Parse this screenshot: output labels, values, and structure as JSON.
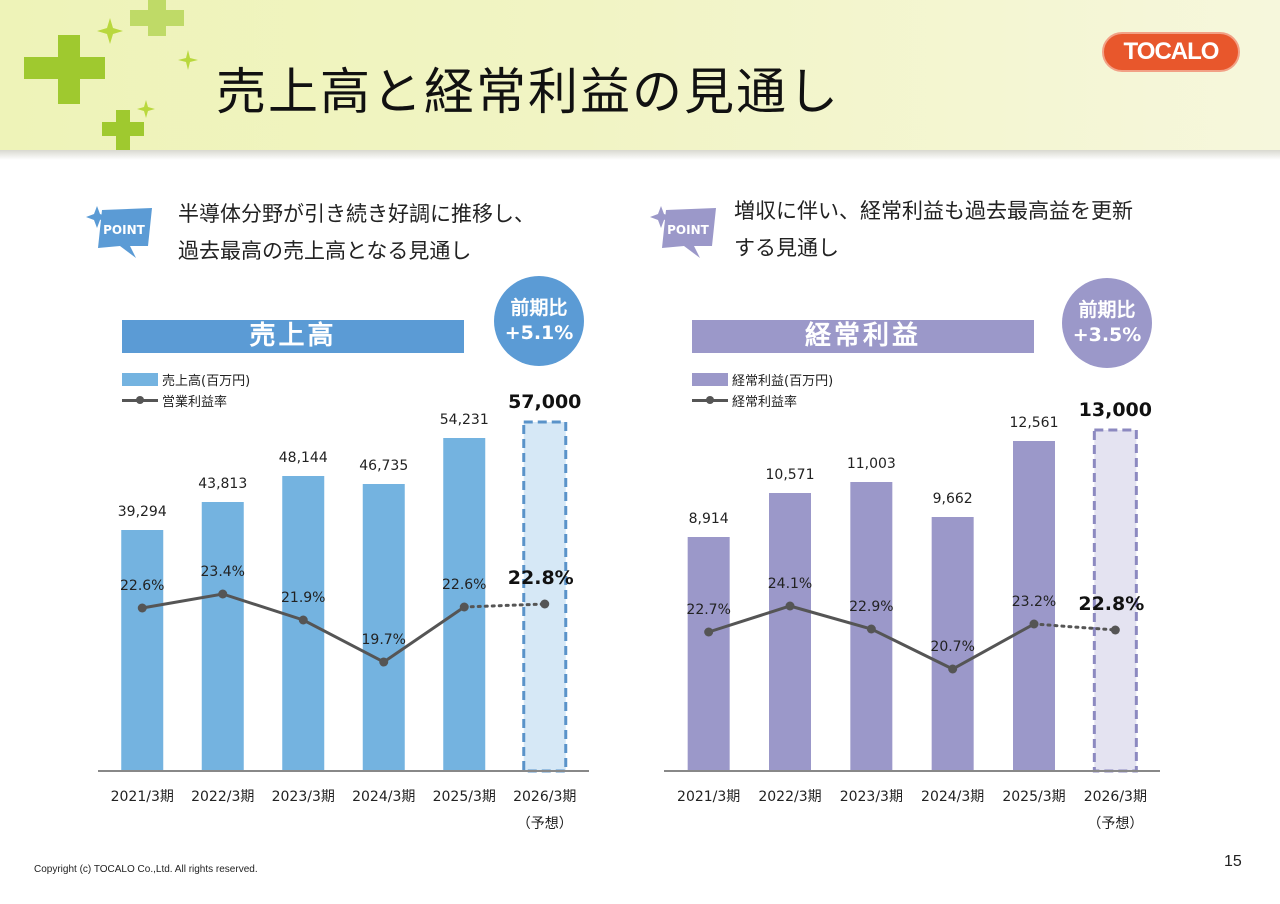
{
  "page": {
    "title": "売上高と経常利益の見通し",
    "logo_text": "TOCALO",
    "copyright": "Copyright (c) TOCALO Co.,Ltd. All rights reserved.",
    "page_number": "15"
  },
  "left_panel": {
    "point_badge": "POINT",
    "point_lines": [
      "半導体分野が引き続き好調に推移し、",
      "過去最高の売上高となる見通し"
    ],
    "chart_title": "売上高",
    "yoy_label": "前期比",
    "yoy_value": "+5.1%",
    "legend_bar": "売上高(百万円)",
    "legend_line": "営業利益率"
  },
  "right_panel": {
    "point_badge": "POINT",
    "point_lines": [
      "増収に伴い、経常利益も過去最高益を更新",
      "する見通し"
    ],
    "chart_title": "経常利益",
    "yoy_label": "前期比",
    "yoy_value": "+3.5%",
    "legend_bar": "経常利益(百万円)",
    "legend_line": "経常利益率"
  },
  "chart_data": [
    {
      "type": "bar",
      "title": "売上高",
      "categories": [
        "2021/3期",
        "2022/3期",
        "2023/3期",
        "2024/3期",
        "2025/3期",
        "2026/3期"
      ],
      "forecast_note": "（予想）",
      "series": [
        {
          "name": "売上高(百万円)",
          "type": "bar",
          "values": [
            39294,
            43813,
            48144,
            46735,
            54231,
            57000
          ],
          "labels": [
            "39,294",
            "43,813",
            "48,144",
            "46,735",
            "54,231",
            "57,000"
          ]
        },
        {
          "name": "営業利益率",
          "type": "line",
          "values": [
            22.6,
            23.4,
            21.9,
            19.7,
            22.6,
            22.8
          ],
          "labels": [
            "22.6%",
            "23.4%",
            "21.9%",
            "19.7%",
            "22.6%",
            "22.8%"
          ]
        }
      ],
      "forecast_index": 5,
      "colors": {
        "bar": "#74b3e0",
        "forecast_fill": "#d6e8f6",
        "forecast_border": "#5a93c9",
        "line": "#555555",
        "title_bg": "#5b9bd5",
        "circle": "#5b9bd5"
      }
    },
    {
      "type": "bar",
      "title": "経常利益",
      "categories": [
        "2021/3期",
        "2022/3期",
        "2023/3期",
        "2024/3期",
        "2025/3期",
        "2026/3期"
      ],
      "forecast_note": "（予想）",
      "series": [
        {
          "name": "経常利益(百万円)",
          "type": "bar",
          "values": [
            8914,
            10571,
            11003,
            9662,
            12561,
            13000
          ],
          "labels": [
            "8,914",
            "10,571",
            "11,003",
            "9,662",
            "12,561",
            "13,000"
          ]
        },
        {
          "name": "経常利益率",
          "type": "line",
          "values": [
            22.7,
            24.1,
            22.9,
            20.7,
            23.2,
            22.8
          ],
          "labels": [
            "22.7%",
            "24.1%",
            "22.9%",
            "20.7%",
            "23.2%",
            "22.8%"
          ]
        }
      ],
      "forecast_index": 5,
      "colors": {
        "bar": "#9b98c9",
        "forecast_fill": "#e4e3f1",
        "forecast_border": "#8c89c0",
        "line": "#555555",
        "title_bg": "#9b98c9",
        "circle": "#9b98c9"
      }
    }
  ]
}
